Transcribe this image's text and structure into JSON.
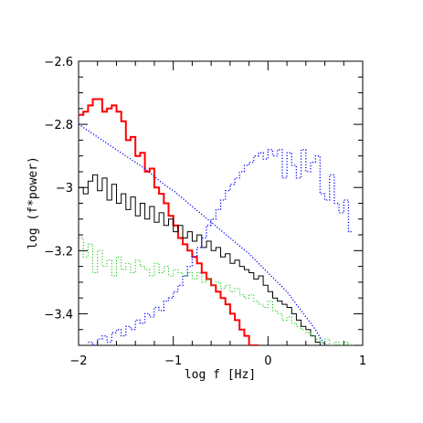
{
  "chart_data": {
    "type": "line",
    "xlabel": "log f [Hz]",
    "ylabel": "log (f*power)",
    "xlim": [
      -2,
      1
    ],
    "ylim": [
      -3.5,
      -2.6
    ],
    "x_ticks": [
      "-2",
      "-1",
      "0",
      "1"
    ],
    "y_ticks": [
      "-2.6",
      "-2.8",
      "-3",
      "-3.2",
      "-3.4"
    ],
    "grid": false,
    "series": [
      {
        "color": "#ff0000",
        "style": "solid",
        "width": 2,
        "step": true,
        "x": [
          -2.0,
          -1.95,
          -1.9,
          -1.85,
          -1.8,
          -1.75,
          -1.7,
          -1.65,
          -1.6,
          -1.55,
          -1.5,
          -1.45,
          -1.4,
          -1.35,
          -1.3,
          -1.25,
          -1.2,
          -1.15,
          -1.1,
          -1.05,
          -1.0,
          -0.95,
          -0.9,
          -0.85,
          -0.8,
          -0.75,
          -0.7,
          -0.65,
          -0.6,
          -0.55,
          -0.5,
          -0.45,
          -0.4,
          -0.35,
          -0.3,
          -0.25,
          -0.2,
          -0.15
        ],
        "y": [
          -2.77,
          -2.76,
          -2.74,
          -2.72,
          -2.72,
          -2.76,
          -2.75,
          -2.74,
          -2.76,
          -2.79,
          -2.85,
          -2.84,
          -2.9,
          -2.89,
          -2.95,
          -2.94,
          -3.0,
          -3.02,
          -3.05,
          -3.09,
          -3.12,
          -3.16,
          -3.18,
          -3.2,
          -3.22,
          -3.24,
          -3.27,
          -3.29,
          -3.31,
          -3.33,
          -3.35,
          -3.37,
          -3.4,
          -3.42,
          -3.45,
          -3.47,
          -3.5,
          -3.5
        ]
      },
      {
        "color": "#000000",
        "style": "solid",
        "width": 1,
        "step": true,
        "x": [
          -2.0,
          -1.95,
          -1.9,
          -1.85,
          -1.8,
          -1.75,
          -1.7,
          -1.65,
          -1.6,
          -1.55,
          -1.5,
          -1.45,
          -1.4,
          -1.35,
          -1.3,
          -1.25,
          -1.2,
          -1.15,
          -1.1,
          -1.05,
          -1.0,
          -0.95,
          -0.9,
          -0.85,
          -0.8,
          -0.75,
          -0.7,
          -0.65,
          -0.6,
          -0.55,
          -0.5,
          -0.45,
          -0.4,
          -0.35,
          -0.3,
          -0.25,
          -0.2,
          -0.15,
          -0.1,
          -0.05,
          0.0,
          0.05,
          0.1,
          0.15,
          0.2,
          0.25,
          0.3,
          0.35,
          0.4,
          0.45,
          0.5,
          0.55,
          0.6
        ],
        "y": [
          -3.0,
          -3.02,
          -2.98,
          -2.96,
          -3.01,
          -2.97,
          -3.04,
          -2.99,
          -3.05,
          -3.02,
          -3.07,
          -3.03,
          -3.09,
          -3.05,
          -3.1,
          -3.06,
          -3.11,
          -3.08,
          -3.12,
          -3.1,
          -3.14,
          -3.12,
          -3.16,
          -3.14,
          -3.17,
          -3.15,
          -3.19,
          -3.17,
          -3.2,
          -3.19,
          -3.22,
          -3.21,
          -3.24,
          -3.23,
          -3.25,
          -3.26,
          -3.27,
          -3.29,
          -3.28,
          -3.31,
          -3.33,
          -3.35,
          -3.36,
          -3.37,
          -3.38,
          -3.4,
          -3.42,
          -3.44,
          -3.45,
          -3.47,
          -3.49,
          -3.5,
          -3.5
        ]
      },
      {
        "color": "#00c000",
        "style": "dotted",
        "width": 1,
        "step": true,
        "x": [
          -2.0,
          -1.95,
          -1.9,
          -1.85,
          -1.8,
          -1.75,
          -1.7,
          -1.65,
          -1.6,
          -1.55,
          -1.5,
          -1.45,
          -1.4,
          -1.35,
          -1.3,
          -1.25,
          -1.2,
          -1.15,
          -1.1,
          -1.05,
          -1.0,
          -0.95,
          -0.9,
          -0.85,
          -0.8,
          -0.75,
          -0.7,
          -0.65,
          -0.6,
          -0.55,
          -0.5,
          -0.45,
          -0.4,
          -0.35,
          -0.3,
          -0.25,
          -0.2,
          -0.15,
          -0.1,
          -0.05,
          0.0,
          0.05,
          0.1,
          0.15,
          0.2,
          0.25,
          0.3,
          0.35,
          0.4,
          0.45,
          0.5,
          0.55,
          0.6,
          0.65,
          0.7,
          0.75,
          0.8,
          0.85
        ],
        "y": [
          -3.16,
          -3.22,
          -3.18,
          -3.27,
          -3.2,
          -3.25,
          -3.23,
          -3.28,
          -3.22,
          -3.26,
          -3.24,
          -3.27,
          -3.23,
          -3.25,
          -3.26,
          -3.28,
          -3.24,
          -3.27,
          -3.25,
          -3.28,
          -3.26,
          -3.27,
          -3.28,
          -3.27,
          -3.29,
          -3.27,
          -3.3,
          -3.29,
          -3.31,
          -3.3,
          -3.32,
          -3.31,
          -3.33,
          -3.32,
          -3.34,
          -3.35,
          -3.34,
          -3.36,
          -3.37,
          -3.38,
          -3.36,
          -3.39,
          -3.4,
          -3.42,
          -3.41,
          -3.43,
          -3.44,
          -3.45,
          -3.46,
          -3.47,
          -3.48,
          -3.49,
          -3.48,
          -3.5,
          -3.49,
          -3.5,
          -3.49,
          -3.5
        ]
      },
      {
        "color": "#0000ff",
        "style": "dotted",
        "width": 1.3,
        "step": true,
        "x": [
          -1.9,
          -1.85,
          -1.8,
          -1.75,
          -1.7,
          -1.65,
          -1.6,
          -1.55,
          -1.5,
          -1.45,
          -1.4,
          -1.35,
          -1.3,
          -1.25,
          -1.2,
          -1.15,
          -1.1,
          -1.05,
          -1.0,
          -0.95,
          -0.9,
          -0.85,
          -0.8,
          -0.75,
          -0.7,
          -0.65,
          -0.6,
          -0.55,
          -0.5,
          -0.45,
          -0.4,
          -0.35,
          -0.3,
          -0.25,
          -0.2,
          -0.15,
          -0.1,
          -0.05,
          0.0,
          0.05,
          0.1,
          0.15,
          0.2,
          0.25,
          0.3,
          0.35,
          0.4,
          0.45,
          0.5,
          0.55,
          0.6,
          0.65,
          0.7,
          0.75,
          0.8,
          0.85
        ],
        "y": [
          -3.49,
          -3.5,
          -3.48,
          -3.47,
          -3.49,
          -3.46,
          -3.45,
          -3.47,
          -3.44,
          -3.45,
          -3.42,
          -3.43,
          -3.4,
          -3.41,
          -3.38,
          -3.39,
          -3.36,
          -3.35,
          -3.33,
          -3.31,
          -3.28,
          -3.25,
          -3.22,
          -3.19,
          -3.16,
          -3.12,
          -3.1,
          -3.07,
          -3.04,
          -3.01,
          -2.99,
          -2.97,
          -2.95,
          -2.93,
          -2.92,
          -2.9,
          -2.89,
          -2.91,
          -2.88,
          -2.9,
          -2.88,
          -2.97,
          -2.89,
          -2.93,
          -2.97,
          -2.88,
          -2.95,
          -2.92,
          -2.9,
          -3.02,
          -3.04,
          -2.96,
          -3.05,
          -3.08,
          -3.04,
          -3.14
        ]
      },
      {
        "color": "#0000ff",
        "style": "dotted",
        "width": 1.3,
        "step": false,
        "x": [
          -2.0,
          -1.9,
          -1.8,
          -1.7,
          -1.6,
          -1.5,
          -1.4,
          -1.3,
          -1.2,
          -1.1,
          -1.0,
          -0.9,
          -0.8,
          -0.7,
          -0.6,
          -0.5,
          -0.4,
          -0.3,
          -0.2,
          -0.1,
          0.0,
          0.1,
          0.2,
          0.3,
          0.4,
          0.5,
          0.6
        ],
        "y": [
          -2.8,
          -2.82,
          -2.84,
          -2.86,
          -2.88,
          -2.9,
          -2.92,
          -2.94,
          -2.965,
          -2.99,
          -3.01,
          -3.035,
          -3.06,
          -3.085,
          -3.11,
          -3.135,
          -3.16,
          -3.185,
          -3.21,
          -3.24,
          -3.27,
          -3.3,
          -3.33,
          -3.37,
          -3.41,
          -3.45,
          -3.5
        ]
      }
    ]
  }
}
